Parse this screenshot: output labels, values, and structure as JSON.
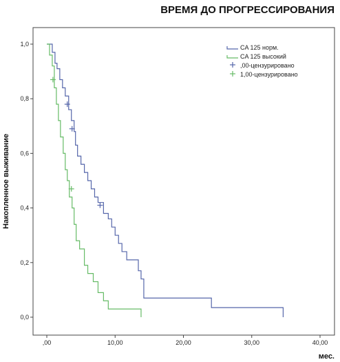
{
  "chart_data": {
    "type": "line",
    "title": "ВРЕМЯ ДО ПРОГРЕССИРОВАНИЯ",
    "xlabel": "мес.",
    "ylabel": "Накопленное выживание",
    "xlim": [
      0,
      40
    ],
    "ylim": [
      0,
      1
    ],
    "xticks": [
      0,
      10,
      20,
      30,
      40
    ],
    "xtick_labels": [
      ",00",
      "10,00",
      "20,00",
      "30,00",
      "40,00"
    ],
    "yticks": [
      0,
      0.2,
      0.4,
      0.6,
      0.8,
      1.0
    ],
    "ytick_labels": [
      "0,0",
      "0,2",
      "0,4",
      "0,6",
      "0,8",
      "1,0"
    ],
    "grid": false,
    "legend_position": "top-right",
    "legend": [
      "CA 125 норм.",
      "CA 125 высокий",
      ",00-цензурировано",
      "1,00-цензурировано"
    ],
    "colors": {
      "normal": "#5566aa",
      "high": "#66bb66"
    },
    "series": [
      {
        "name": "CA 125 норм.",
        "step_x": [
          0,
          0.8,
          1.2,
          1.5,
          1.9,
          2.3,
          2.7,
          3.2,
          3.6,
          4.0,
          4.2,
          4.5,
          5.0,
          5.5,
          6.0,
          6.5,
          7.0,
          7.5,
          8.3,
          9.0,
          9.5,
          10.0,
          10.5,
          11.0,
          11.7,
          12.3,
          13.4,
          13.8,
          14.2,
          24.1,
          34.6
        ],
        "step_y": [
          1.0,
          0.97,
          0.93,
          0.91,
          0.87,
          0.84,
          0.81,
          0.76,
          0.72,
          0.68,
          0.63,
          0.59,
          0.56,
          0.53,
          0.5,
          0.47,
          0.44,
          0.42,
          0.38,
          0.36,
          0.33,
          0.3,
          0.27,
          0.24,
          0.21,
          0.21,
          0.17,
          0.14,
          0.07,
          0.035,
          0.0
        ],
        "censored_x": [
          3.0,
          3.7,
          7.8
        ],
        "censored_y": [
          0.78,
          0.69,
          0.41
        ]
      },
      {
        "name": "CA 125 высокий",
        "step_x": [
          0,
          0.4,
          0.8,
          1.1,
          1.4,
          1.7,
          2.0,
          2.4,
          2.7,
          3.0,
          3.3,
          3.7,
          4.0,
          4.3,
          4.8,
          5.5,
          6.0,
          6.8,
          7.5,
          8.3,
          9.0,
          10.2,
          13.8
        ],
        "step_y": [
          1.0,
          0.96,
          0.92,
          0.84,
          0.78,
          0.72,
          0.66,
          0.6,
          0.54,
          0.5,
          0.44,
          0.4,
          0.34,
          0.28,
          0.25,
          0.19,
          0.16,
          0.13,
          0.09,
          0.06,
          0.03,
          0.03,
          0.0
        ],
        "censored_x": [
          0.9,
          3.6
        ],
        "censored_y": [
          0.87,
          0.47
        ]
      }
    ]
  }
}
